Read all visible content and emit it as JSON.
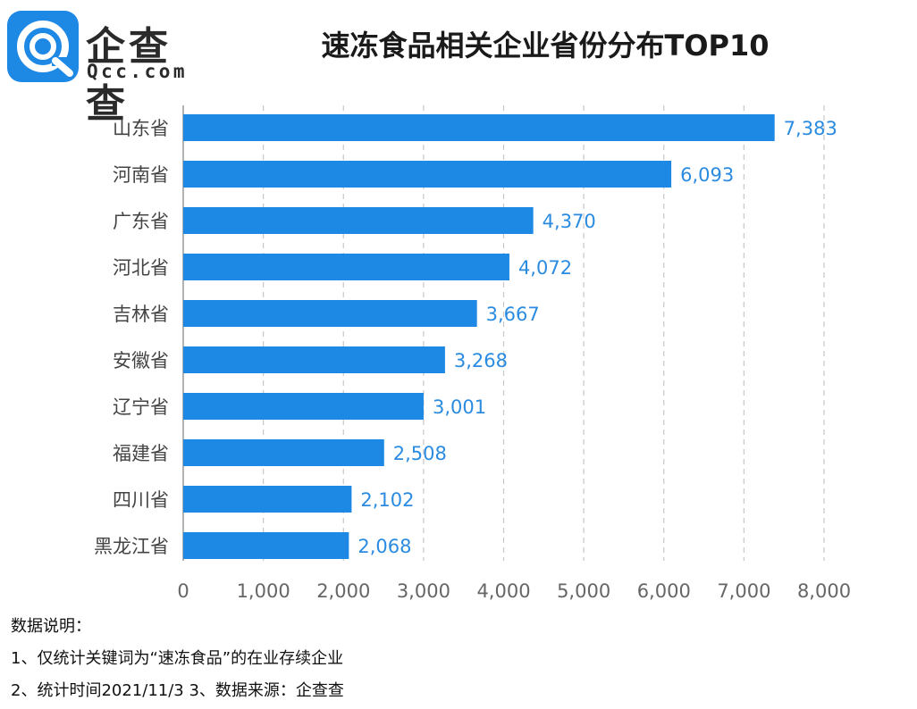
{
  "logo": {
    "name": "企查查",
    "sub": "Qcc.com"
  },
  "chart_data": {
    "type": "bar",
    "orientation": "horizontal",
    "title": "速冻食品相关企业省份分布TOP10",
    "categories": [
      "山东省",
      "河南省",
      "广东省",
      "河北省",
      "吉林省",
      "安徽省",
      "辽宁省",
      "福建省",
      "四川省",
      "黑龙江省"
    ],
    "values": [
      7383,
      6093,
      4370,
      4072,
      3667,
      3268,
      3001,
      2508,
      2102,
      2068
    ],
    "value_labels": [
      "7,383",
      "6,093",
      "4,370",
      "4,072",
      "3,667",
      "3,268",
      "3,001",
      "2,508",
      "2,102",
      "2,068"
    ],
    "xlim": [
      0,
      8000
    ],
    "xticks": [
      0,
      1000,
      2000,
      3000,
      4000,
      5000,
      6000,
      7000,
      8000
    ],
    "xtick_labels": [
      "0",
      "1,000",
      "2,000",
      "3,000",
      "4,000",
      "5,000",
      "6,000",
      "7,000",
      "8,000"
    ],
    "grid": "vertical-dashed",
    "bar_color": "#1e88e5",
    "label_color": "#2a8be0"
  },
  "notes": {
    "heading": "数据说明：",
    "line1": "1、仅统计关键词为“速冻食品”的在业存续企业",
    "line2": "2、统计时间2021/11/3   3、数据来源：企查查"
  }
}
